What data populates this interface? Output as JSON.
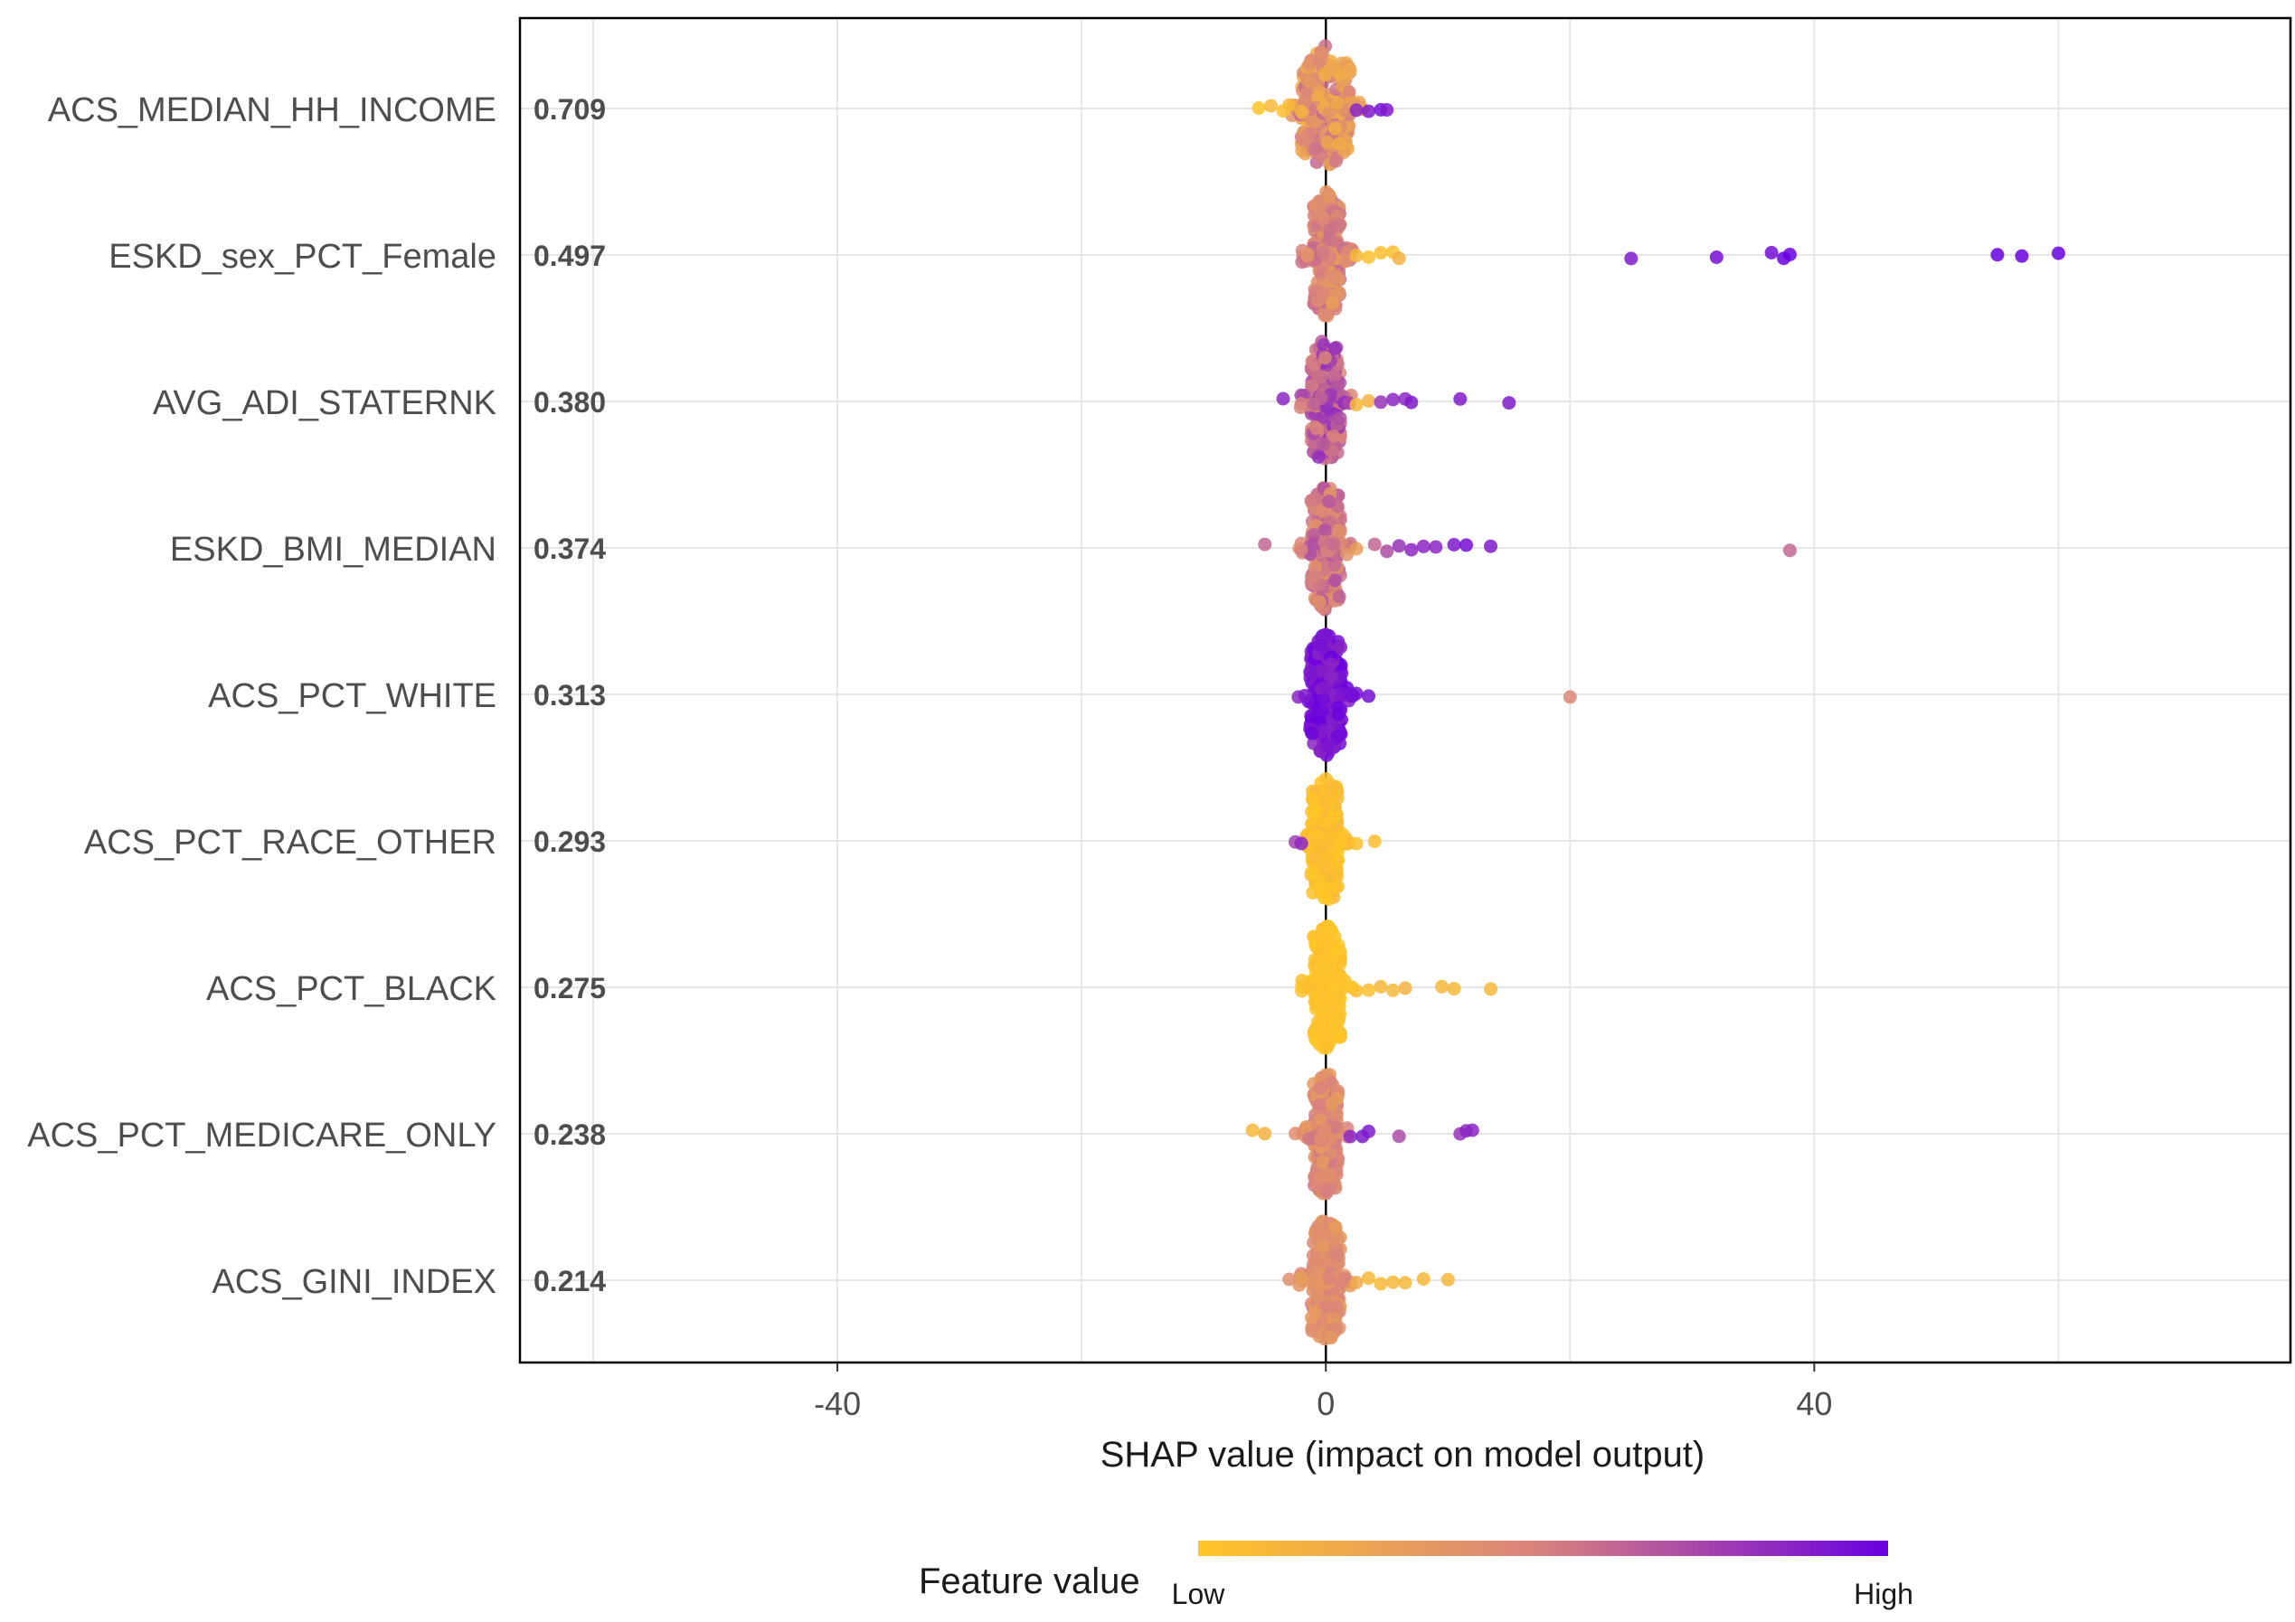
{
  "chart_data": {
    "type": "scatter",
    "subtype": "shap-beeswarm",
    "xlabel": "SHAP value (impact on model output)",
    "xlim": [
      -66,
      79
    ],
    "xticks": [
      -40,
      0,
      40
    ],
    "grid": true,
    "features": [
      {
        "name": "ACS_MEDIAN_HH_INCOME",
        "mean_abs_shap": "0.709"
      },
      {
        "name": "ESKD_sex_PCT_Female",
        "mean_abs_shap": "0.497"
      },
      {
        "name": "AVG_ADI_STATERNK",
        "mean_abs_shap": "0.380"
      },
      {
        "name": "ESKD_BMI_MEDIAN",
        "mean_abs_shap": "0.374"
      },
      {
        "name": "ACS_PCT_WHITE",
        "mean_abs_shap": "0.313"
      },
      {
        "name": "ACS_PCT_RACE_OTHER",
        "mean_abs_shap": "0.293"
      },
      {
        "name": "ACS_PCT_BLACK",
        "mean_abs_shap": "0.275"
      },
      {
        "name": "ACS_PCT_MEDICARE_ONLY",
        "mean_abs_shap": "0.238"
      },
      {
        "name": "ACS_GINI_INDEX",
        "mean_abs_shap": "0.214"
      }
    ],
    "outliers": [
      [
        [
          -5.5,
          0.0
        ],
        [
          -4.5,
          0.1
        ],
        [
          -3.5,
          0.05
        ],
        [
          -3.0,
          0.1
        ],
        [
          -2.0,
          0.15
        ],
        [
          2.5,
          0.85
        ],
        [
          3.5,
          0.9
        ],
        [
          4.5,
          0.95
        ],
        [
          5.0,
          0.9
        ]
      ],
      [
        [
          -1.5,
          0.4
        ],
        [
          2.5,
          0.1
        ],
        [
          3.5,
          0.05
        ],
        [
          4.5,
          0.05
        ],
        [
          5.5,
          0.05
        ],
        [
          6.0,
          0.15
        ],
        [
          25.0,
          0.9
        ],
        [
          32.0,
          0.95
        ],
        [
          36.5,
          0.95
        ],
        [
          37.5,
          1.0
        ],
        [
          38.0,
          1.0
        ],
        [
          55.0,
          1.0
        ],
        [
          57.0,
          1.0
        ],
        [
          60.0,
          1.0
        ]
      ],
      [
        [
          -3.5,
          0.85
        ],
        [
          -2.0,
          0.5
        ],
        [
          -1.0,
          0.6
        ],
        [
          2.5,
          0.1
        ],
        [
          3.5,
          0.15
        ],
        [
          4.5,
          0.8
        ],
        [
          5.5,
          0.85
        ],
        [
          6.5,
          0.85
        ],
        [
          7.0,
          0.9
        ],
        [
          11.0,
          0.9
        ],
        [
          15.0,
          0.9
        ]
      ],
      [
        [
          -5.0,
          0.6
        ],
        [
          -2.0,
          0.5
        ],
        [
          2.5,
          0.3
        ],
        [
          4.0,
          0.6
        ],
        [
          5.0,
          0.7
        ],
        [
          6.0,
          0.8
        ],
        [
          7.0,
          0.85
        ],
        [
          8.0,
          0.85
        ],
        [
          9.0,
          0.85
        ],
        [
          10.5,
          0.9
        ],
        [
          11.5,
          0.95
        ],
        [
          13.5,
          0.9
        ],
        [
          38.0,
          0.6
        ]
      ],
      [
        [
          2.5,
          0.95
        ],
        [
          3.5,
          0.95
        ],
        [
          20.0,
          0.45
        ]
      ],
      [
        [
          -2.5,
          0.75
        ],
        [
          -2.0,
          0.85
        ],
        [
          2.5,
          0.05
        ],
        [
          4.0,
          0.05
        ]
      ],
      [
        [
          -1.5,
          0.05
        ],
        [
          2.5,
          0.05
        ],
        [
          3.5,
          0.05
        ],
        [
          4.5,
          0.1
        ],
        [
          5.5,
          0.1
        ],
        [
          6.5,
          0.15
        ],
        [
          9.5,
          0.1
        ],
        [
          10.5,
          0.1
        ],
        [
          13.5,
          0.1
        ]
      ],
      [
        [
          -6.0,
          0.1
        ],
        [
          -5.0,
          0.15
        ],
        [
          -2.5,
          0.4
        ],
        [
          2.0,
          0.85
        ],
        [
          3.0,
          0.9
        ],
        [
          3.5,
          0.9
        ],
        [
          6.0,
          0.7
        ],
        [
          11.0,
          0.8
        ],
        [
          11.5,
          0.85
        ],
        [
          12.0,
          0.85
        ]
      ],
      [
        [
          -3.0,
          0.4
        ],
        [
          -2.0,
          0.3
        ],
        [
          2.5,
          0.2
        ],
        [
          3.5,
          0.1
        ],
        [
          4.5,
          0.1
        ],
        [
          5.5,
          0.1
        ],
        [
          6.5,
          0.1
        ],
        [
          8.0,
          0.1
        ],
        [
          10.0,
          0.1
        ]
      ]
    ],
    "clusters": [
      {
        "min": -2.0,
        "max": 2.0,
        "color_low": 0.15,
        "color_high": 0.6
      },
      {
        "min": -1.0,
        "max": 1.2,
        "color_low": 0.3,
        "color_high": 0.6
      },
      {
        "min": -1.2,
        "max": 1.2,
        "color_low": 0.45,
        "color_high": 0.85
      },
      {
        "min": -1.2,
        "max": 1.2,
        "color_low": 0.35,
        "color_high": 0.7
      },
      {
        "min": -1.3,
        "max": 1.3,
        "color_low": 0.85,
        "color_high": 1.0
      },
      {
        "min": -1.2,
        "max": 1.0,
        "color_low": 0.0,
        "color_high": 0.1
      },
      {
        "min": -1.0,
        "max": 1.2,
        "color_low": 0.0,
        "color_high": 0.05
      },
      {
        "min": -1.0,
        "max": 1.0,
        "color_low": 0.3,
        "color_high": 0.55
      },
      {
        "min": -1.2,
        "max": 1.2,
        "color_low": 0.3,
        "color_high": 0.5
      }
    ],
    "legend": {
      "title": "Feature value",
      "low_label": "Low",
      "high_label": "High",
      "color_low": "#FFC626",
      "color_mid": "#D8817F",
      "color_high": "#6A00E0"
    }
  }
}
